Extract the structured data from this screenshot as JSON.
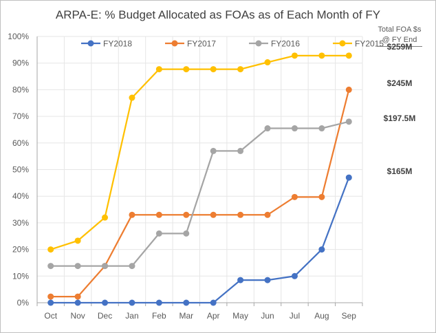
{
  "chart_data": {
    "type": "line",
    "title": "ARPA-E: % Budget Allocated as FOAs as of Each Month of FY",
    "xlabel": "",
    "ylabel": "",
    "categories": [
      "Oct",
      "Nov",
      "Dec",
      "Jan",
      "Feb",
      "Mar",
      "Apr",
      "May",
      "Jun",
      "Jul",
      "Aug",
      "Sep"
    ],
    "ylim": [
      0,
      100
    ],
    "yticks": [
      "0%",
      "10%",
      "20%",
      "30%",
      "40%",
      "50%",
      "60%",
      "70%",
      "80%",
      "90%",
      "100%"
    ],
    "grid": true,
    "legend_position": "top",
    "series": [
      {
        "name": "FY2018",
        "color": "#4472c4",
        "values": [
          0,
          0,
          0,
          0,
          0,
          0,
          0,
          8.5,
          8.5,
          10,
          20,
          47
        ]
      },
      {
        "name": "FY2017",
        "color": "#ed7d31",
        "values": [
          2.3,
          2.3,
          13.8,
          33,
          33,
          33,
          33,
          33,
          33,
          39.7,
          39.7,
          80
        ]
      },
      {
        "name": "FY2016",
        "color": "#a5a5a5",
        "values": [
          13.8,
          13.8,
          13.8,
          13.8,
          26,
          26,
          57,
          57,
          65.5,
          65.5,
          65.5,
          68
        ]
      },
      {
        "name": "FY2015",
        "color": "#ffc000",
        "values": [
          20,
          23.3,
          32,
          77,
          87.7,
          87.7,
          87.7,
          87.7,
          90.3,
          92.8,
          92.8,
          92.8
        ]
      }
    ],
    "annotations": {
      "header_line1": "Total FOA $s",
      "header_line2": "@ FY End",
      "values": [
        {
          "text": "$259M",
          "series": "FY2015",
          "at": 92.8
        },
        {
          "text": "$245M",
          "series": "FY2017",
          "at": 80
        },
        {
          "text": "$197.5M",
          "series": "FY2016",
          "at": 68
        },
        {
          "text": "$165M",
          "series": "FY2018",
          "at": 47
        }
      ]
    }
  }
}
